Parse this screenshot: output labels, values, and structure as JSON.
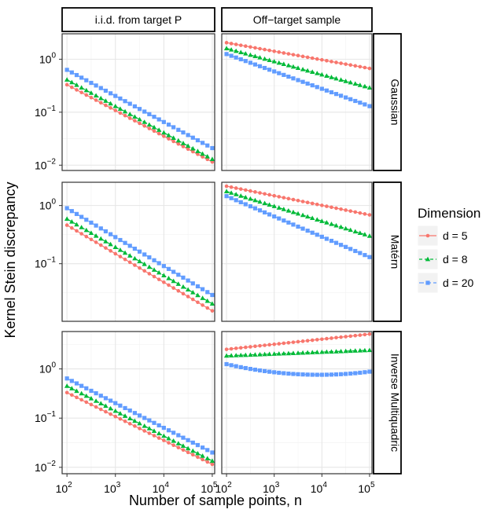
{
  "chart_data": {
    "type": "line",
    "xlabel": "Number of sample points, n",
    "ylabel": "Kernel Stein discrepancy",
    "x_scale": "log10",
    "y_scale": "log10",
    "x_ticks": [
      100,
      1000,
      10000,
      100000
    ],
    "x_tick_exponents": [
      "2",
      "3",
      "4",
      "5"
    ],
    "columns": [
      "i.i.d. from target P",
      "Off−target sample"
    ],
    "rows": [
      "Gaussian",
      "Matérn",
      "Inverse Multiquadric"
    ],
    "legend": {
      "title": "Dimension",
      "position": "right",
      "entries": [
        "d = 5",
        "d = 8",
        "d = 20"
      ]
    },
    "series_styles": [
      {
        "color": "#F8766D",
        "marker": "circle",
        "dash": "solid"
      },
      {
        "color": "#00BA38",
        "marker": "triangle",
        "dash": "dash"
      },
      {
        "color": "#619CFF",
        "marker": "square",
        "dash": "longdash"
      }
    ],
    "panel_rows": [
      {
        "ylim_log10": [
          -2.1,
          0.48
        ],
        "y_ticks": [
          {
            "base": "10",
            "exp": "0",
            "value": 1
          },
          {
            "base": "10",
            "exp": "−1",
            "value": 0.1
          },
          {
            "base": "10",
            "exp": "−2",
            "value": 0.01
          }
        ],
        "panels": [
          {
            "column": 0,
            "series": [
              {
                "n_start": 100,
                "y_start": 0.33,
                "n_end": 100000,
                "y_end": 0.0115
              },
              {
                "n_start": 100,
                "y_start": 0.41,
                "n_end": 100000,
                "y_end": 0.013
              },
              {
                "n_start": 100,
                "y_start": 0.63,
                "n_end": 100000,
                "y_end": 0.021
              }
            ]
          },
          {
            "column": 1,
            "series": [
              {
                "n_start": 100,
                "y_start": 2.05,
                "n_end": 100000,
                "y_end": 0.67
              },
              {
                "n_start": 100,
                "y_start": 1.6,
                "n_end": 100000,
                "y_end": 0.29
              },
              {
                "n_start": 100,
                "y_start": 1.25,
                "n_end": 100000,
                "y_end": 0.13
              }
            ]
          }
        ]
      },
      {
        "ylim_log10": [
          -1.99,
          0.4
        ],
        "y_ticks": [
          {
            "base": "10",
            "exp": "0",
            "value": 1
          },
          {
            "base": "10",
            "exp": "−1",
            "value": 0.1
          }
        ],
        "panels": [
          {
            "column": 0,
            "series": [
              {
                "n_start": 100,
                "y_start": 0.46,
                "n_end": 100000,
                "y_end": 0.0155
              },
              {
                "n_start": 100,
                "y_start": 0.59,
                "n_end": 100000,
                "y_end": 0.0205
              },
              {
                "n_start": 100,
                "y_start": 0.9,
                "n_end": 100000,
                "y_end": 0.029
              }
            ]
          },
          {
            "column": 1,
            "series": [
              {
                "n_start": 100,
                "y_start": 2.15,
                "n_end": 100000,
                "y_end": 0.69
              },
              {
                "n_start": 100,
                "y_start": 1.75,
                "n_end": 100000,
                "y_end": 0.3
              },
              {
                "n_start": 100,
                "y_start": 1.45,
                "n_end": 100000,
                "y_end": 0.13
              }
            ]
          }
        ]
      },
      {
        "ylim_log10": [
          -2.13,
          0.76
        ],
        "y_ticks": [
          {
            "base": "10",
            "exp": "0",
            "value": 1
          },
          {
            "base": "10",
            "exp": "−1",
            "value": 0.1
          },
          {
            "base": "10",
            "exp": "−2",
            "value": 0.01
          }
        ],
        "panels": [
          {
            "column": 0,
            "series": [
              {
                "n_start": 100,
                "y_start": 0.33,
                "n_end": 100000,
                "y_end": 0.0115
              },
              {
                "n_start": 100,
                "y_start": 0.45,
                "n_end": 100000,
                "y_end": 0.0135
              },
              {
                "n_start": 100,
                "y_start": 0.64,
                "n_end": 100000,
                "y_end": 0.02
              }
            ]
          },
          {
            "column": 1,
            "series": [
              {
                "n_start": 100,
                "y_start": 2.5,
                "n_end": 100000,
                "y_end": 5.1
              },
              {
                "n_start": 100,
                "y_start": 1.85,
                "n_end": 100000,
                "y_end": 2.4
              },
              {
                "n_start": 100,
                "y_start": 1.25,
                "n_end": 100000,
                "y_end": 0.88,
                "y_min": 0.78
              }
            ]
          }
        ]
      }
    ]
  }
}
